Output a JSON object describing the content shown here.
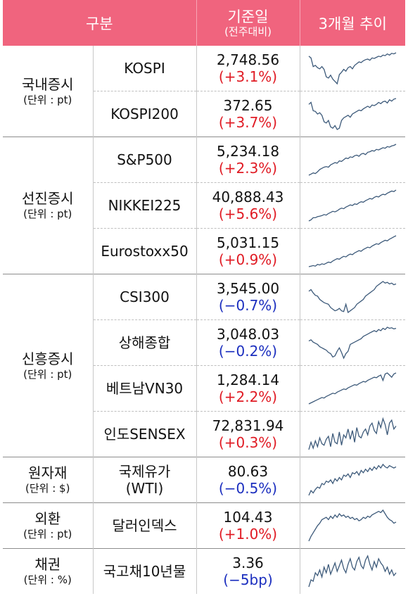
{
  "header": {
    "col1": "구분",
    "col2_top": "기준일",
    "col2_sub": "(전주대비)",
    "col3": "3개월 추이"
  },
  "groups": [
    {
      "label": "국내증시",
      "unit": "(단위 : pt)",
      "rows": [
        {
          "name": "KOSPI",
          "value": "2,748.56",
          "change": "(+3.1%)",
          "dir": "up",
          "trend": [
            58,
            55,
            40,
            42,
            38,
            36,
            40,
            35,
            22,
            20,
            25,
            18,
            14,
            10,
            26,
            30,
            35,
            32,
            38,
            40,
            36,
            42,
            45,
            48,
            47,
            50,
            52,
            53,
            51,
            55,
            54,
            56,
            58,
            57,
            60,
            59,
            62,
            60,
            63,
            62,
            64
          ]
        },
        {
          "name": "KOSPI200",
          "value": "372.65",
          "change": "(+3.7%)",
          "dir": "up",
          "trend": [
            55,
            58,
            45,
            44,
            40,
            42,
            38,
            28,
            26,
            30,
            20,
            18,
            22,
            16,
            18,
            30,
            34,
            36,
            38,
            35,
            40,
            42,
            44,
            46,
            45,
            48,
            50,
            52,
            50,
            54,
            53,
            55,
            58,
            56,
            59,
            60,
            57,
            62,
            60,
            63,
            64
          ]
        }
      ]
    },
    {
      "label": "선진증시",
      "unit": "(단위 : pt)",
      "rows": [
        {
          "name": "S&P500",
          "value": "5,234.18",
          "change": "(+2.3%)",
          "dir": "up",
          "trend": [
            10,
            12,
            14,
            13,
            16,
            20,
            22,
            24,
            25,
            24,
            28,
            30,
            32,
            31,
            35,
            34,
            37,
            40,
            39,
            42,
            41,
            44,
            45,
            43,
            47,
            48,
            46,
            50,
            51,
            53,
            52,
            55,
            54,
            56,
            58,
            57,
            60,
            59,
            61,
            62,
            64
          ]
        },
        {
          "name": "NIKKEI225",
          "value": "40,888.43",
          "change": "(+5.6%)",
          "dir": "up",
          "trend": [
            6,
            8,
            12,
            12,
            14,
            15,
            16,
            18,
            17,
            20,
            22,
            24,
            23,
            25,
            28,
            30,
            29,
            32,
            34,
            36,
            35,
            38,
            37,
            40,
            42,
            41,
            44,
            46,
            48,
            47,
            50,
            52,
            51,
            54,
            56,
            55,
            58,
            60,
            62,
            61,
            64
          ]
        },
        {
          "name": "Eurostoxx50",
          "value": "5,031.15",
          "change": "(+0.9%)",
          "dir": "up",
          "trend": [
            8,
            9,
            10,
            9,
            12,
            11,
            13,
            12,
            14,
            16,
            15,
            18,
            20,
            22,
            21,
            24,
            26,
            25,
            28,
            30,
            29,
            32,
            34,
            36,
            35,
            38,
            40,
            42,
            41,
            44,
            46,
            48,
            47,
            50,
            52,
            54,
            53,
            56,
            58,
            60,
            62
          ]
        }
      ]
    },
    {
      "label": "신흥증시",
      "unit": "(단위 : pt)",
      "rows": [
        {
          "name": "CSI300",
          "value": "3,545.00",
          "change": "(−0.7%)",
          "dir": "down",
          "trend": [
            50,
            52,
            48,
            45,
            44,
            40,
            38,
            36,
            35,
            34,
            30,
            28,
            26,
            27,
            29,
            26,
            25,
            34,
            24,
            26,
            28,
            30,
            34,
            36,
            38,
            40,
            44,
            46,
            48,
            50,
            52,
            56,
            58,
            60,
            62,
            60,
            61,
            59,
            60,
            58,
            59
          ]
        },
        {
          "name": "상해종합",
          "value": "3,048.03",
          "change": "(−0.2%)",
          "dir": "down",
          "trend": [
            40,
            42,
            38,
            36,
            34,
            30,
            28,
            26,
            24,
            20,
            18,
            12,
            14,
            22,
            28,
            20,
            10,
            18,
            22,
            34,
            36,
            38,
            40,
            42,
            44,
            48,
            50,
            52,
            54,
            56,
            58,
            56,
            60,
            58,
            62,
            60,
            64,
            62,
            63,
            61,
            62
          ]
        },
        {
          "name": "베트남VN30",
          "value": "1,284.14",
          "change": "(+2.2%)",
          "dir": "up",
          "trend": [
            6,
            8,
            10,
            12,
            14,
            16,
            18,
            17,
            20,
            22,
            24,
            26,
            25,
            28,
            30,
            32,
            34,
            33,
            36,
            38,
            40,
            42,
            41,
            44,
            46,
            48,
            47,
            50,
            52,
            54,
            56,
            55,
            58,
            60,
            50,
            62,
            64,
            60,
            56,
            62,
            64
          ]
        },
        {
          "name": "인도SENSEX",
          "value": "72,831.94",
          "change": "(+0.3%)",
          "dir": "up",
          "trend": [
            20,
            30,
            22,
            32,
            24,
            36,
            28,
            26,
            34,
            38,
            24,
            42,
            30,
            28,
            44,
            26,
            40,
            36,
            48,
            34,
            46,
            30,
            50,
            38,
            36,
            44,
            48,
            40,
            52,
            56,
            46,
            42,
            58,
            50,
            62,
            54,
            40,
            56,
            60,
            48,
            52
          ]
        }
      ]
    },
    {
      "label": "원자재",
      "unit": "(단위 : $)",
      "rows": [
        {
          "name": "국제유가",
          "name2": "(WTI)",
          "value": "80.63",
          "change": "(−0.5%)",
          "dir": "down",
          "trend": [
            10,
            18,
            14,
            20,
            24,
            22,
            30,
            28,
            34,
            32,
            36,
            30,
            38,
            34,
            40,
            36,
            44,
            42,
            46,
            40,
            48,
            46,
            50,
            44,
            52,
            48,
            54,
            50,
            56,
            52,
            58,
            54,
            60,
            56,
            62,
            58,
            56,
            60,
            58,
            56,
            58
          ]
        }
      ]
    },
    {
      "label": "외환",
      "unit": "(단위 : pt)",
      "rows": [
        {
          "name": "달러인덱스",
          "value": "104.43",
          "change": "(+1.0%)",
          "dir": "up",
          "trend": [
            10,
            18,
            24,
            30,
            36,
            40,
            46,
            48,
            50,
            46,
            52,
            48,
            54,
            50,
            56,
            52,
            54,
            50,
            52,
            48,
            50,
            46,
            48,
            44,
            46,
            50,
            48,
            52,
            50,
            54,
            56,
            58,
            60,
            58,
            62,
            56,
            50,
            46,
            44,
            40,
            42
          ]
        }
      ]
    },
    {
      "label": "채권",
      "unit": "(단위 : %)",
      "rows": [
        {
          "name": "국고채10년물",
          "value": "3.36",
          "change": "(−5bp)",
          "dir": "down",
          "trend": [
            20,
            30,
            28,
            40,
            36,
            44,
            34,
            48,
            40,
            52,
            38,
            46,
            54,
            42,
            50,
            58,
            46,
            40,
            52,
            60,
            48,
            44,
            56,
            62,
            50,
            46,
            58,
            64,
            52,
            44,
            56,
            48,
            60,
            54,
            50,
            42,
            48,
            38,
            44,
            36,
            40
          ]
        }
      ]
    }
  ],
  "colors": {
    "header_bg": "#f0647e",
    "up": "#e01b24",
    "down": "#1c2fbf",
    "spark": "#3d5a7a"
  }
}
